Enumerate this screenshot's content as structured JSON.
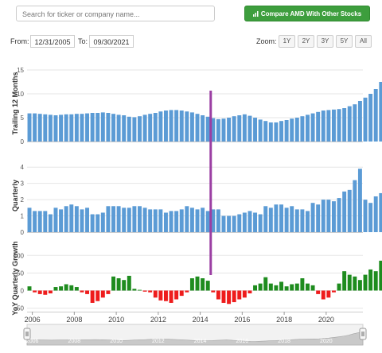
{
  "search": {
    "placeholder": "Search for ticker or company name..."
  },
  "compare_button": {
    "label": "Compare AMD With Other Stocks"
  },
  "date_range": {
    "from_label": "From:",
    "from_value": "12/31/2005",
    "to_label": "To:",
    "to_value": "09/30/2021"
  },
  "zoom": {
    "label": "Zoom:",
    "options": [
      "1Y",
      "2Y",
      "3Y",
      "5Y",
      "All"
    ]
  },
  "colors": {
    "bar_blue": "#5b9bd5",
    "positive": "#1e8c1e",
    "negative": "#ee1c1c",
    "marker": "#9b3fa3",
    "button_green": "#3d9e3d"
  },
  "chart_data": [
    {
      "type": "bar",
      "ylabel": "Trailing 12 Months",
      "ylim": [
        0,
        16
      ],
      "yticks": [
        0,
        5,
        10,
        15
      ],
      "x_start": 2005.75,
      "x_step": 0.25,
      "values": [
        5.9,
        5.9,
        5.8,
        5.7,
        5.6,
        5.5,
        5.6,
        5.7,
        5.7,
        5.8,
        5.8,
        5.9,
        6.0,
        6.0,
        6.1,
        6.0,
        5.8,
        5.6,
        5.5,
        5.2,
        5.1,
        5.3,
        5.6,
        5.8,
        6.0,
        6.3,
        6.5,
        6.6,
        6.6,
        6.5,
        6.3,
        6.1,
        5.8,
        5.5,
        5.2,
        4.9,
        4.7,
        4.8,
        5.0,
        5.3,
        5.5,
        5.7,
        5.4,
        5.0,
        4.6,
        4.3,
        4.0,
        4.0,
        4.3,
        4.5,
        4.8,
        5.0,
        5.3,
        5.6,
        5.9,
        6.2,
        6.5,
        6.6,
        6.7,
        6.8,
        7.0,
        7.4,
        7.8,
        8.5,
        9.2,
        10.0,
        11.0,
        12.5,
        13.7,
        15.0
      ]
    },
    {
      "type": "bar",
      "ylabel": "Quarterly",
      "ylim": [
        0,
        4.5
      ],
      "yticks": [
        0,
        1,
        2,
        3,
        4
      ],
      "x_start": 2005.75,
      "x_step": 0.25,
      "values": [
        1.5,
        1.3,
        1.3,
        1.3,
        1.1,
        1.5,
        1.4,
        1.6,
        1.7,
        1.6,
        1.4,
        1.5,
        1.1,
        1.1,
        1.2,
        1.6,
        1.6,
        1.6,
        1.5,
        1.5,
        1.6,
        1.6,
        1.5,
        1.4,
        1.4,
        1.4,
        1.2,
        1.3,
        1.3,
        1.4,
        1.6,
        1.5,
        1.4,
        1.5,
        1.3,
        1.4,
        1.4,
        1.0,
        1.0,
        1.0,
        1.1,
        1.2,
        1.3,
        1.2,
        1.1,
        1.6,
        1.5,
        1.7,
        1.7,
        1.5,
        1.6,
        1.4,
        1.4,
        1.3,
        1.8,
        1.7,
        2.0,
        2.0,
        1.9,
        2.1,
        2.5,
        2.6,
        3.2,
        3.9,
        2.0,
        1.8,
        2.2,
        2.4,
        3.5,
        4.1
      ]
    },
    {
      "type": "bar",
      "ylabel": "YoY Quarterly Growth",
      "ylim": [
        -60,
        130
      ],
      "yticks": [
        -50,
        0,
        50,
        100
      ],
      "x_start": 2005.75,
      "x_step": 0.25,
      "values": [
        12,
        -5,
        -10,
        -12,
        -8,
        10,
        12,
        18,
        15,
        10,
        -5,
        -10,
        -35,
        -30,
        -20,
        -10,
        40,
        35,
        30,
        42,
        5,
        2,
        -3,
        -5,
        -20,
        -28,
        -30,
        -35,
        -25,
        -15,
        -5,
        35,
        40,
        35,
        28,
        -5,
        -25,
        -35,
        -38,
        -33,
        -25,
        -20,
        -8,
        15,
        20,
        38,
        20,
        15,
        25,
        12,
        18,
        20,
        35,
        20,
        15,
        -10,
        -25,
        -20,
        -5,
        20,
        55,
        45,
        40,
        30,
        45,
        60,
        55,
        85,
        90,
        60
      ]
    }
  ],
  "x_axis": {
    "range": [
      2005.75,
      2021.75
    ],
    "ticks": [
      "2006",
      "2008",
      "2010",
      "2012",
      "2014",
      "2016",
      "2018",
      "2020"
    ]
  },
  "marker": {
    "x": 2014.5
  },
  "navigator": {
    "ticks": [
      "2006",
      "2008",
      "2010",
      "2012",
      "2014",
      "2016",
      "2018",
      "2020"
    ]
  }
}
